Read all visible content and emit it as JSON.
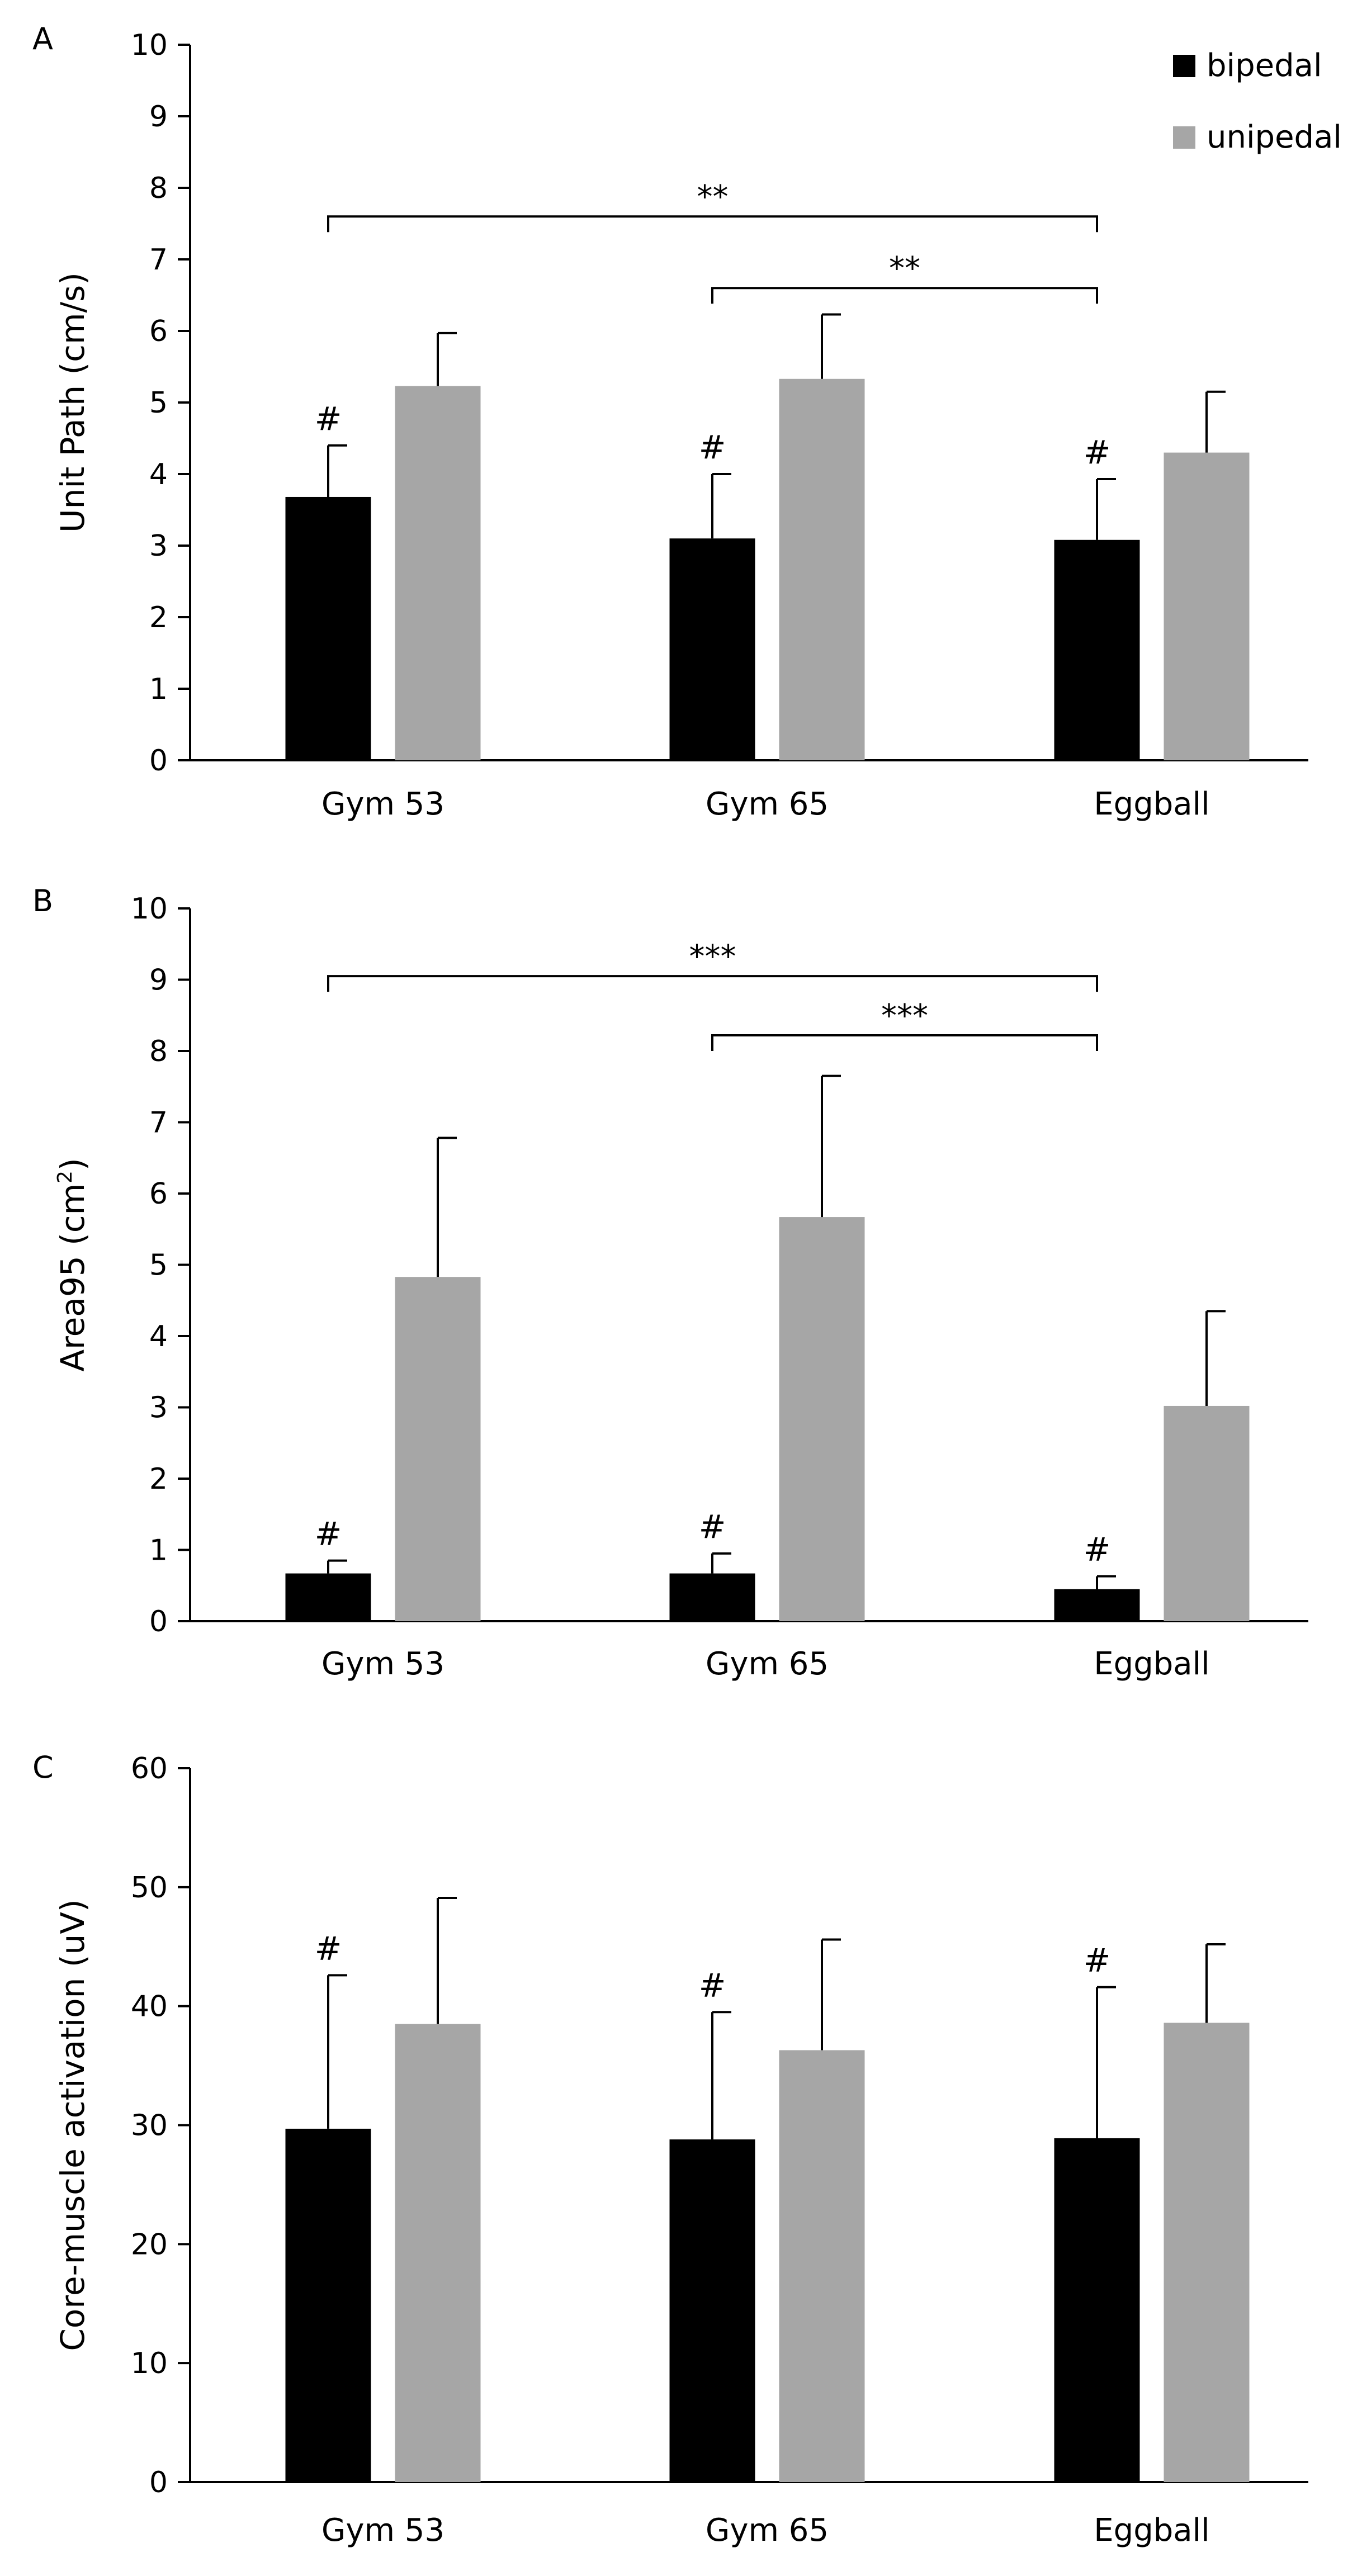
{
  "legend": [
    {
      "name": "bipedal",
      "color": "#000000"
    },
    {
      "name": "unipedal",
      "color": "#a6a6a6"
    }
  ],
  "chart_data": [
    {
      "panel": "A",
      "type": "bar",
      "ylabel": "Unit Path (cm/s)",
      "ylim": [
        0,
        10
      ],
      "yticks": [
        "0",
        "1",
        "2",
        "3",
        "4",
        "5",
        "6",
        "7",
        "8",
        "9",
        "10"
      ],
      "categories": [
        "Gym 53",
        "Gym 65",
        "Eggball"
      ],
      "series": [
        {
          "name": "bipedal",
          "color": "#000000",
          "values": [
            3.68,
            3.1,
            3.08
          ],
          "errors": [
            0.72,
            0.9,
            0.85
          ]
        },
        {
          "name": "unipedal",
          "color": "#a6a6a6",
          "values": [
            5.23,
            5.33,
            4.3
          ],
          "errors": [
            0.74,
            0.9,
            0.85
          ]
        }
      ],
      "hash_marks": [
        0,
        1,
        2
      ],
      "hash_symbol": "#",
      "significance": [
        {
          "from": 0,
          "to": 2,
          "y": 7.6,
          "label": "**"
        },
        {
          "from": 1,
          "to": 2,
          "y": 6.6,
          "label": "**"
        }
      ]
    },
    {
      "panel": "B",
      "type": "bar",
      "ylabel": "Area95 (cm",
      "ylabel_sup": "2",
      "ylabel_end": ")",
      "ylim": [
        0,
        10
      ],
      "yticks": [
        "0",
        "1",
        "2",
        "3",
        "4",
        "5",
        "6",
        "7",
        "8",
        "9",
        "10"
      ],
      "categories": [
        "Gym 53",
        "Gym 65",
        "Eggball"
      ],
      "series": [
        {
          "name": "bipedal",
          "color": "#000000",
          "values": [
            0.67,
            0.67,
            0.45
          ],
          "errors": [
            0.18,
            0.28,
            0.18
          ]
        },
        {
          "name": "unipedal",
          "color": "#a6a6a6",
          "values": [
            4.83,
            5.67,
            3.02
          ],
          "errors": [
            1.95,
            1.98,
            1.33
          ]
        }
      ],
      "hash_marks": [
        0,
        1,
        2
      ],
      "hash_symbol": "#",
      "significance": [
        {
          "from": 0,
          "to": 2,
          "y": 9.05,
          "label": "***"
        },
        {
          "from": 1,
          "to": 2,
          "y": 8.22,
          "label": "***"
        }
      ]
    },
    {
      "panel": "C",
      "type": "bar",
      "ylabel": "Core-muscle activation (uV)",
      "ylim": [
        0,
        60
      ],
      "yticks": [
        "0",
        "10",
        "20",
        "30",
        "40",
        "50",
        "60"
      ],
      "categories": [
        "Gym 53",
        "Gym 65",
        "Eggball"
      ],
      "series": [
        {
          "name": "bipedal",
          "color": "#000000",
          "values": [
            29.7,
            28.8,
            28.9
          ],
          "errors": [
            12.9,
            10.7,
            12.7
          ]
        },
        {
          "name": "unipedal",
          "color": "#a6a6a6",
          "values": [
            38.5,
            36.3,
            38.6
          ],
          "errors": [
            10.6,
            9.3,
            6.6
          ]
        }
      ],
      "hash_marks": [
        0,
        1,
        2
      ],
      "hash_symbol": "#",
      "significance": []
    }
  ]
}
